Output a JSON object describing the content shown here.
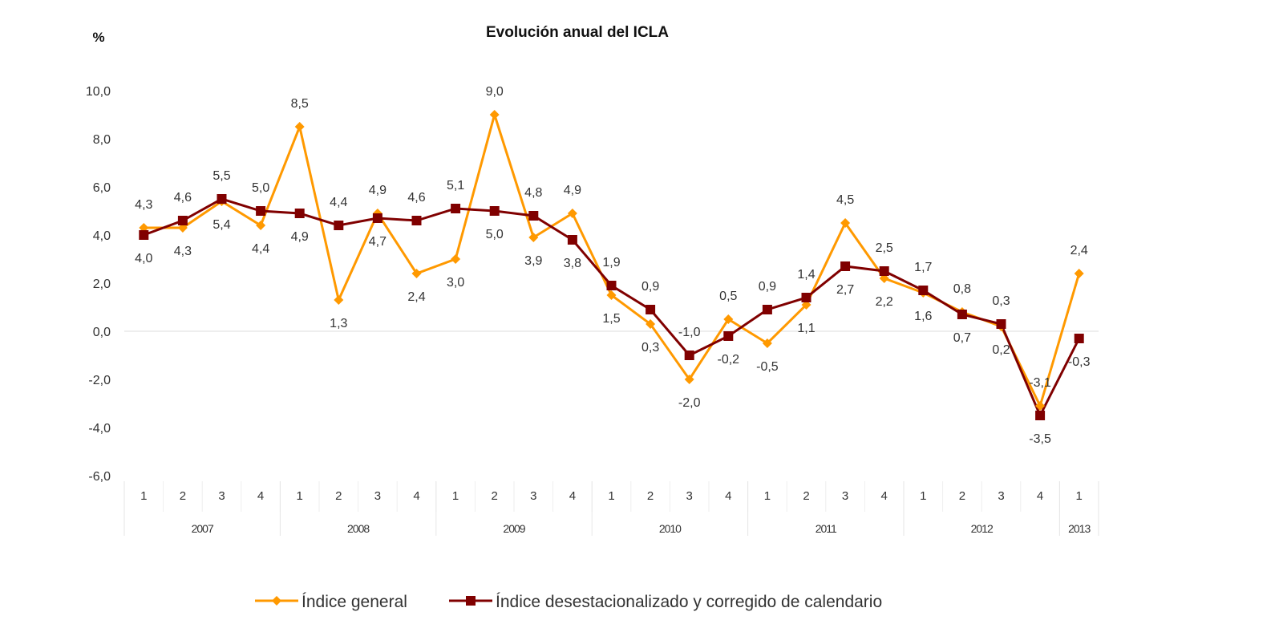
{
  "chart_data": {
    "type": "line",
    "title": "Evolución anual del ICLA",
    "ylabel": "%",
    "ylim": [
      -6,
      10
    ],
    "yticks": [
      "10,0",
      "8,0",
      "6,0",
      "4,0",
      "2,0",
      "0,0",
      "-2,0",
      "-4,0",
      "-6,0"
    ],
    "ytick_values": [
      10,
      8,
      6,
      4,
      2,
      0,
      -2,
      -4,
      -6
    ],
    "quarters": [
      "1",
      "2",
      "3",
      "4",
      "1",
      "2",
      "3",
      "4",
      "1",
      "2",
      "3",
      "4",
      "1",
      "2",
      "3",
      "4",
      "1",
      "2",
      "3",
      "4",
      "1",
      "2",
      "3",
      "4",
      "1"
    ],
    "years": [
      {
        "label": "2007",
        "span": 4
      },
      {
        "label": "2008",
        "span": 4
      },
      {
        "label": "2009",
        "span": 4
      },
      {
        "label": "2010",
        "span": 4
      },
      {
        "label": "2011",
        "span": 4
      },
      {
        "label": "2012",
        "span": 4
      },
      {
        "label": "2013",
        "span": 1
      }
    ],
    "series": [
      {
        "name": "Índice general",
        "color": "#FF9900",
        "marker": "diamond",
        "values": [
          4.3,
          4.3,
          5.4,
          4.4,
          8.5,
          1.3,
          4.9,
          2.4,
          3.0,
          9.0,
          3.9,
          4.9,
          1.5,
          0.3,
          -2.0,
          0.5,
          -0.5,
          1.1,
          4.5,
          2.2,
          1.6,
          0.8,
          0.2,
          -3.1,
          2.4
        ],
        "labels": [
          "4,3",
          "4,3",
          "5,4",
          "4,4",
          "8,5",
          "1,3",
          "4,9",
          "2,4",
          "3,0",
          "9,0",
          "3,9",
          "4,9",
          "1,5",
          "0,3",
          "-2,0",
          "0,5",
          "-0,5",
          "1,1",
          "4,5",
          "2,2",
          "1,6",
          "0,8",
          "0,2",
          "-3,1",
          "2,4"
        ]
      },
      {
        "name": "Índice desestacionalizado y corregido de calendario",
        "color": "#800000",
        "marker": "square",
        "values": [
          4.0,
          4.6,
          5.5,
          5.0,
          4.9,
          4.4,
          4.7,
          4.6,
          5.1,
          5.0,
          4.8,
          3.8,
          1.9,
          0.9,
          -1.0,
          -0.2,
          0.9,
          1.4,
          2.7,
          2.5,
          1.7,
          0.7,
          0.3,
          -3.5,
          -0.3
        ],
        "labels": [
          "4,0",
          "4,6",
          "5,5",
          "5,0",
          "4,9",
          "4,4",
          "4,7",
          "4,6",
          "5,1",
          "5,0",
          "4,8",
          "3,8",
          "1,9",
          "0,9",
          "-1,0",
          "-0,2",
          "0,9",
          "1,4",
          "2,7",
          "2,5",
          "1,7",
          "0,7",
          "0,3",
          "-3,5",
          "-0,3"
        ]
      }
    ],
    "grid": false,
    "legend": "bottom"
  }
}
